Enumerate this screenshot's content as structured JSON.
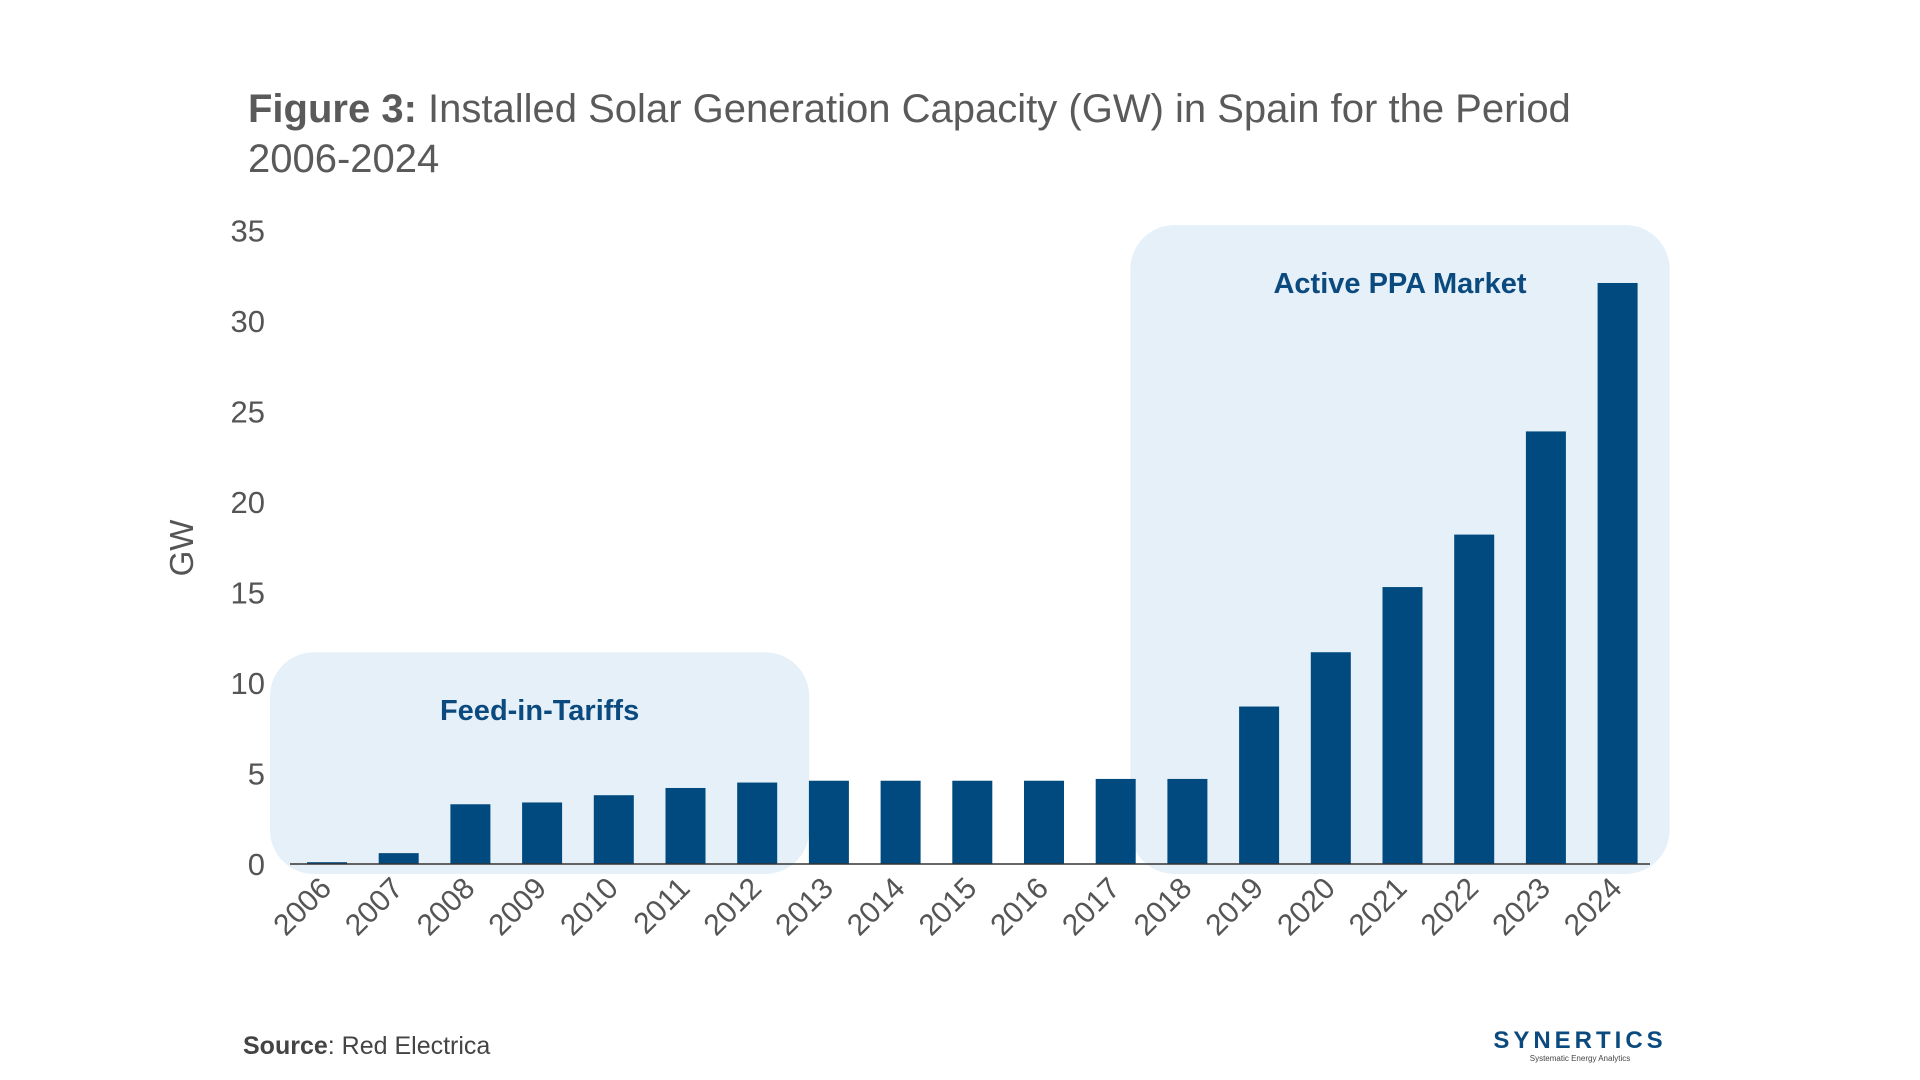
{
  "title": {
    "prefix": "Figure 3:",
    "text": "Installed Solar Generation Capacity (GW) in Spain for the Period 2006-2024"
  },
  "chart_data": {
    "type": "bar",
    "title": "Installed Solar Generation Capacity (GW) in Spain for the Period 2006-2024",
    "xlabel": "",
    "ylabel": "GW",
    "ylim": [
      0,
      35
    ],
    "yticks": [
      0,
      5,
      10,
      15,
      20,
      25,
      30,
      35
    ],
    "grid": false,
    "categories": [
      "2006",
      "2007",
      "2008",
      "2009",
      "2010",
      "2011",
      "2012",
      "2013",
      "2014",
      "2015",
      "2016",
      "2017",
      "2018",
      "2019",
      "2020",
      "2021",
      "2022",
      "2023",
      "2024"
    ],
    "values": [
      0.1,
      0.6,
      3.3,
      3.4,
      3.8,
      4.2,
      4.5,
      4.6,
      4.6,
      4.6,
      4.6,
      4.7,
      4.7,
      8.7,
      11.7,
      15.3,
      18.2,
      23.9,
      32.1
    ],
    "annotations": [
      {
        "label": "Feed-in-Tariffs",
        "from": "2006",
        "to": "2012",
        "top_value": 11.7
      },
      {
        "label": "Active PPA Market",
        "from": "2018",
        "to": "2024",
        "top_value": 35.3
      }
    ]
  },
  "colors": {
    "bar": "#004a7f",
    "region_fill": "#e6f0f9",
    "region_label": "#0b4a7e",
    "text": "#555555",
    "axis": "#333333"
  },
  "source": {
    "key": "Source",
    "text": ": Red Electrica"
  },
  "logo": {
    "name": "SYNERTICS",
    "tagline": "Systematic Energy Analytics"
  }
}
